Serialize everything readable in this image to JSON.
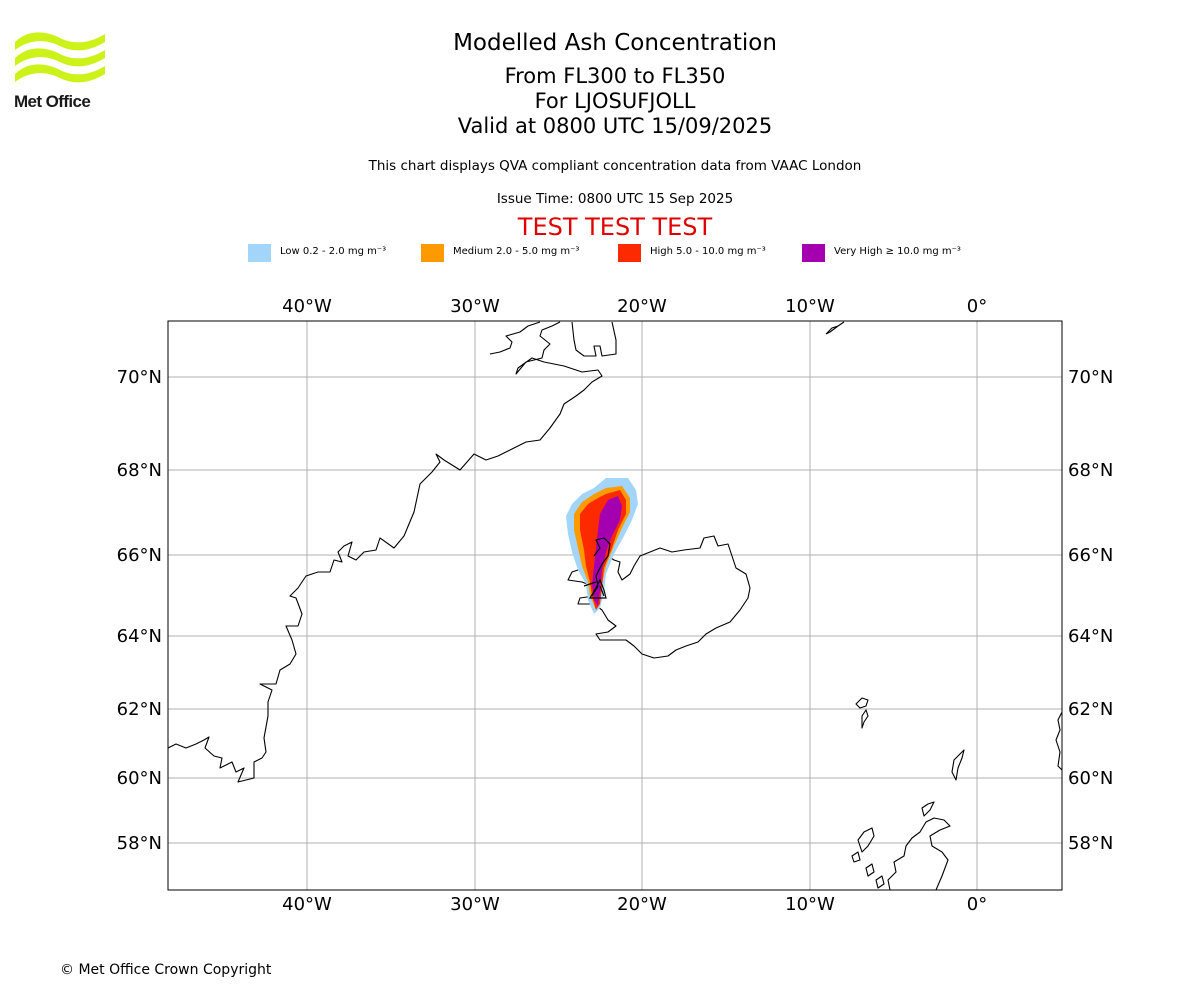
{
  "logo": {
    "text": "Met Office",
    "color": "#cdf21a"
  },
  "title": "Modelled Ash Concentration",
  "subtitle_lines": [
    "From FL300 to FL350",
    "For LJOSUFJOLL",
    "Valid at 0800 UTC 15/09/2025"
  ],
  "info_line": "This chart displays QVA compliant concentration data from VAAC London",
  "issue_time": "Issue Time: 0800 UTC 15 Sep 2025",
  "test_banner": "TEST TEST TEST",
  "legend": [
    {
      "label": "Low 0.2 - 2.0 mg m⁻³",
      "color": "#a3d5fb"
    },
    {
      "label": "Medium 2.0 - 5.0 mg m⁻³",
      "color": "#fd9a00"
    },
    {
      "label": "High 5.0 - 10.0 mg m⁻³",
      "color": "#fd2a00"
    },
    {
      "label": "Very High ≥ 10.0 mg m⁻³",
      "color": "#a400b0"
    }
  ],
  "map": {
    "longitude_ticks": [
      "40°W",
      "30°W",
      "20°W",
      "10°W",
      "0°"
    ],
    "latitude_ticks": [
      "70°N",
      "68°N",
      "66°N",
      "64°N",
      "62°N",
      "60°N",
      "58°N"
    ],
    "gridlines": true,
    "ash_source_volcano": "LJOSUFJOLL"
  },
  "copyright": "© Met Office Crown Copyright"
}
